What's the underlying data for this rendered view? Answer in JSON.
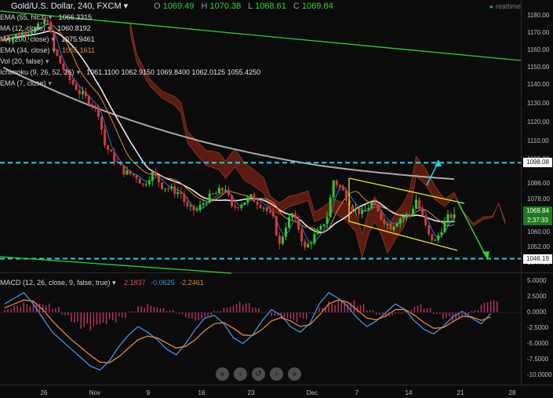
{
  "header": {
    "title": "Gold/U.S. Dollar, 240, FXCM",
    "open_label": "O",
    "open": "1069.49",
    "high_label": "H",
    "high": "1070.38",
    "low_label": "L",
    "low": "1068.61",
    "close_label": "C",
    "close": "1069.84",
    "realtime": "realtime"
  },
  "indicators": [
    {
      "label": "EMA (55, hlc3)",
      "value": "1066.3315",
      "color": "#e6e6e6"
    },
    {
      "label": "MA (12, close)",
      "value": "1060.8192",
      "color": "#e6e6e6"
    },
    {
      "label": "MA (200, close)",
      "value": "1075.9461",
      "color": "#e6e6e6"
    },
    {
      "label": "EMA (34, close)",
      "value": "1065.1611",
      "color": "#e08a3a"
    },
    {
      "label": "Vol (20, false)",
      "value": "",
      "color": "#e6e6e6"
    },
    {
      "label": "Ichimoku (9, 26, 52, 26)",
      "value": "1061.1100  1062.9150  1069.8400  1062.0125  1055.4250",
      "color": "#e6e6e6"
    },
    {
      "label": "EMA (7, close)",
      "value": "",
      "color": "#e6e6e6"
    }
  ],
  "price_axis": {
    "ticks": [
      "1180.00",
      "1170.00",
      "1160.00",
      "1150.00",
      "1140.00",
      "1130.00",
      "1120.00",
      "1110.00",
      "1100.00",
      "1086.00",
      "1078.00",
      "1060.00",
      "1052.00",
      "1044.00"
    ],
    "markers": [
      {
        "label": "1098.08",
        "bg": "#ffffff",
        "fg": "#111111"
      },
      {
        "label": "1069.84",
        "bg": "#1e7a1e",
        "fg": "#ffffff"
      },
      {
        "label": "2:37:33",
        "bg": "#1e7a1e",
        "fg": "#ffffff"
      },
      {
        "label": "1046.19",
        "bg": "#ffffff",
        "fg": "#111111"
      }
    ]
  },
  "macd_panel": {
    "label": "MACD (12, 26, close, 9, false, true)",
    "values": [
      "2.1837",
      "-0.0625",
      "-2.2461"
    ],
    "ticks": [
      "5.0000",
      "2.5000",
      "0.0000",
      "-2.5000",
      "-5.0000",
      "-7.5000",
      "-10.0000"
    ]
  },
  "time_axis": [
    "26",
    "Nov",
    "9",
    "16",
    "23",
    "Dec",
    "7",
    "14",
    "21",
    "28"
  ],
  "nav": [
    {
      "icon": "chevron-double-left-icon",
      "glyph": "«"
    },
    {
      "icon": "chevron-left-icon",
      "glyph": "‹"
    },
    {
      "icon": "refresh-icon",
      "glyph": "↺"
    },
    {
      "icon": "chevron-right-icon",
      "glyph": "›"
    },
    {
      "icon": "chevron-double-right-icon",
      "glyph": "»"
    }
  ],
  "colors": {
    "bull": "#2ec82e",
    "bear": "#d23a3a",
    "cloud": "#6b1e12",
    "level": "#1ad3ee",
    "channel": "#e6e61e",
    "trend": "#2ed12e",
    "ma200": "#a9a9a9",
    "ema": "#e6e6e6"
  },
  "chart_data": {
    "type": "candlestick",
    "title": "Gold/U.S. Dollar, 240, FXCM",
    "x_labels": [
      "26",
      "Nov",
      "9",
      "16",
      "23",
      "Dec",
      "7",
      "14",
      "21",
      "28"
    ],
    "ylim": [
      1042,
      1186
    ],
    "horizontal_levels": [
      1098.08,
      1046.19
    ],
    "price_path": [
      [
        0,
        1166
      ],
      [
        6,
        1170
      ],
      [
        10,
        1172
      ],
      [
        14,
        1178
      ],
      [
        16,
        1160
      ],
      [
        20,
        1145
      ],
      [
        24,
        1136
      ],
      [
        28,
        1130
      ],
      [
        30,
        1125
      ],
      [
        32,
        1108
      ],
      [
        35,
        1100
      ],
      [
        38,
        1093
      ],
      [
        42,
        1090
      ],
      [
        44,
        1085
      ],
      [
        47,
        1092
      ],
      [
        50,
        1085
      ],
      [
        53,
        1083
      ],
      [
        56,
        1081
      ],
      [
        58,
        1073
      ],
      [
        61,
        1072
      ],
      [
        64,
        1078
      ],
      [
        67,
        1081
      ],
      [
        70,
        1084
      ],
      [
        72,
        1073
      ],
      [
        75,
        1076
      ],
      [
        78,
        1079
      ],
      [
        82,
        1074
      ],
      [
        85,
        1067
      ],
      [
        87,
        1053
      ],
      [
        89,
        1064
      ],
      [
        91,
        1070
      ],
      [
        93,
        1062
      ],
      [
        95,
        1051
      ],
      [
        98,
        1058
      ],
      [
        100,
        1062
      ],
      [
        102,
        1069
      ],
      [
        104,
        1088
      ],
      [
        107,
        1082
      ],
      [
        110,
        1074
      ],
      [
        113,
        1070
      ],
      [
        116,
        1076
      ],
      [
        119,
        1068
      ],
      [
        122,
        1063
      ],
      [
        125,
        1068
      ],
      [
        128,
        1070
      ],
      [
        130,
        1078
      ],
      [
        132,
        1068
      ],
      [
        134,
        1058
      ],
      [
        136,
        1055
      ],
      [
        138,
        1062
      ],
      [
        140,
        1068
      ],
      [
        142,
        1070
      ]
    ],
    "macd": {
      "histogram": [
        0.6,
        1.2,
        1.8,
        2.6,
        2.1,
        1.0,
        -0.5,
        -1.8,
        -2.9,
        -3.6,
        -3.0,
        -2.0,
        -1.0,
        0.2,
        1.1,
        1.6,
        1.2,
        0.5,
        -0.3,
        -1.1,
        -1.5,
        -0.8,
        0.4,
        1.3,
        2.0,
        1.7,
        0.9,
        0.1,
        -0.8,
        -1.4,
        -1.9,
        -1.2,
        -0.2,
        0.9,
        2.2,
        3.1,
        2.6,
        1.5,
        0.4,
        -0.4,
        -0.9,
        -0.3,
        0.6,
        1.5,
        0.8,
        -0.3,
        -1.2,
        -2.0,
        -1.1,
        0.4,
        1.8,
        2.2
      ],
      "macd_line": [
        1.5,
        2.5,
        3.5,
        1.5,
        -1.0,
        -3.5,
        -5.0,
        -6.5,
        -8.0,
        -9.5,
        -10.2,
        -8.5,
        -6.0,
        -4.0,
        -2.5,
        -3.5,
        -4.8,
        -6.5,
        -7.5,
        -5.5,
        -3.0,
        -1.0,
        -0.5,
        -2.0,
        -4.5,
        -5.5,
        -4.0,
        -1.5,
        0.5,
        -0.5,
        -2.5,
        -3.5,
        -2.0,
        1.5,
        3.5,
        2.5,
        1.0,
        -1.0,
        -2.5,
        -1.5,
        0.0,
        1.5,
        0.5,
        -1.5,
        -3.0,
        -3.8,
        -2.5,
        -0.8,
        0.2,
        -1.0,
        -2.0,
        -0.2
      ],
      "signal_line": [
        0.8,
        1.5,
        2.2,
        2.0,
        0.5,
        -1.5,
        -3.2,
        -4.8,
        -6.2,
        -7.6,
        -8.8,
        -8.9,
        -7.8,
        -6.3,
        -4.8,
        -4.2,
        -4.5,
        -5.4,
        -6.3,
        -6.0,
        -4.8,
        -3.2,
        -2.0,
        -1.8,
        -2.8,
        -4.0,
        -4.1,
        -3.0,
        -1.5,
        -0.9,
        -1.5,
        -2.5,
        -2.2,
        -0.5,
        1.5,
        2.2,
        1.8,
        0.4,
        -1.0,
        -1.3,
        -0.6,
        0.5,
        0.5,
        -0.5,
        -1.8,
        -2.8,
        -2.7,
        -1.7,
        -0.7,
        -0.8,
        -1.4,
        -0.8
      ]
    }
  }
}
